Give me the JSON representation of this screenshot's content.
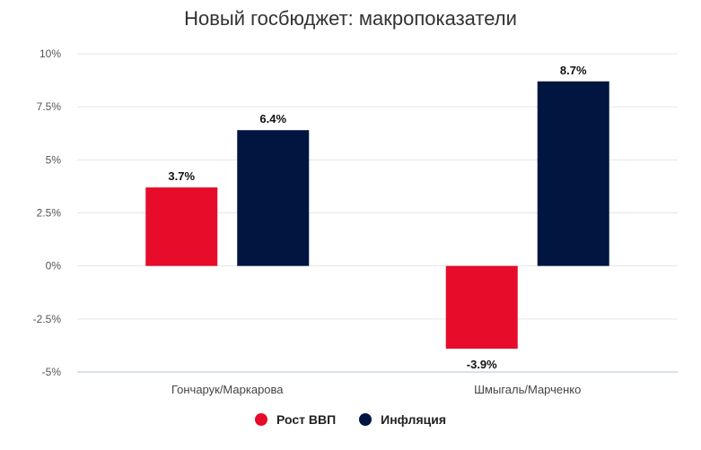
{
  "chart_data": {
    "type": "bar",
    "title": "Новый госбюджет: макропоказатели",
    "categories": [
      "Гончарук/Маркарова",
      "Шмыгаль/Марченко"
    ],
    "series": [
      {
        "name": "Рост ВВП",
        "color": "#e60c2a",
        "values": [
          3.7,
          -3.9
        ],
        "labels": [
          "3.7%",
          "-3.9%"
        ]
      },
      {
        "name": "Инфляция",
        "color": "#001540",
        "values": [
          6.4,
          8.7
        ],
        "labels": [
          "6.4%",
          "8.7%"
        ]
      }
    ],
    "yticks": [
      {
        "value": 10,
        "label": "10%"
      },
      {
        "value": 7.5,
        "label": "7.5%"
      },
      {
        "value": 5,
        "label": "5%"
      },
      {
        "value": 2.5,
        "label": "2.5%"
      },
      {
        "value": 0,
        "label": "0%"
      },
      {
        "value": -2.5,
        "label": "-2.5%"
      },
      {
        "value": -5,
        "label": "-5%"
      }
    ],
    "ylim": [
      -5,
      10
    ],
    "xlabel": "",
    "ylabel": "",
    "grid": true,
    "legend_position": "bottom-center"
  }
}
